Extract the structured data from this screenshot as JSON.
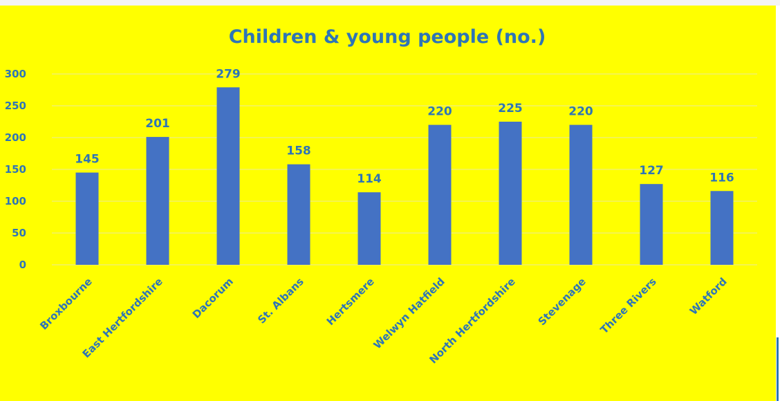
{
  "chart_data": {
    "type": "bar",
    "title": "Children & young people (no.)",
    "categories": [
      "Broxbourne",
      "East Hertfordshire",
      "Dacorum",
      "St. Albans",
      "Hertsmere",
      "Welwyn Hatfield",
      "North Hertfordshire",
      "Stevenage",
      "Three Rivers",
      "Watford"
    ],
    "values": [
      145,
      201,
      279,
      158,
      114,
      220,
      225,
      220,
      127,
      116
    ],
    "yticks": [
      0,
      50,
      100,
      150,
      200,
      250,
      300
    ],
    "ylim": [
      0,
      300
    ],
    "xlabel": "",
    "ylabel": "",
    "grid": true,
    "legend": "none",
    "colors": {
      "bar": "#4472C4",
      "text": "#2E75B6",
      "background": "#FFFF00",
      "grid": "#E8E8A0"
    }
  }
}
